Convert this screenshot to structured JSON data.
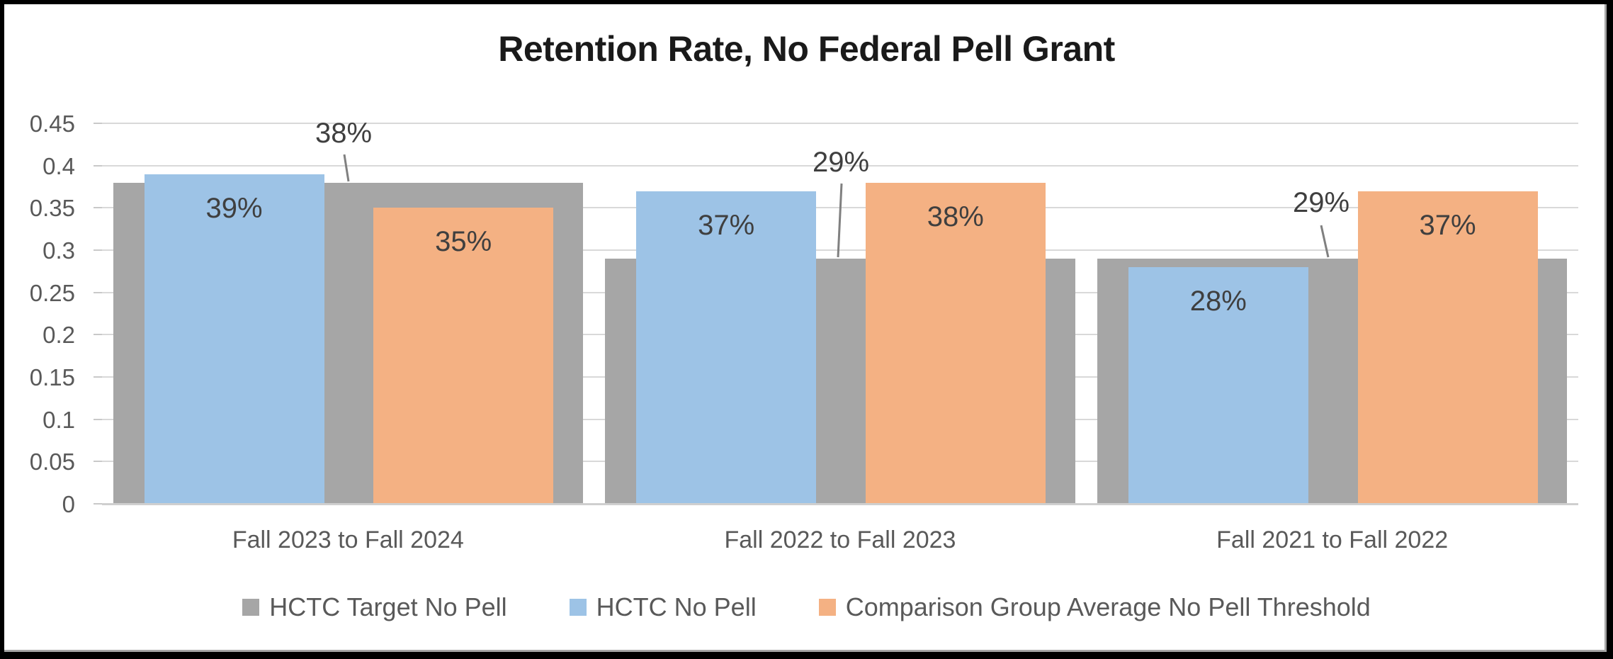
{
  "chart_data": {
    "type": "bar",
    "title": "Retention Rate, No Federal Pell Grant",
    "categories": [
      "Fall 2023 to Fall 2024",
      "Fall 2022 to Fall 2023",
      "Fall 2021 to Fall 2022"
    ],
    "series": [
      {
        "name": "HCTC Target No Pell",
        "color": "#A6A6A6",
        "role": "target-background-span",
        "values": [
          0.38,
          0.29,
          0.29
        ],
        "labels": [
          "38%",
          "29%",
          "29%"
        ],
        "label_style": "callout-above-with-leader-line"
      },
      {
        "name": "HCTC No Pell",
        "color": "#9DC3E6",
        "role": "column",
        "values": [
          0.39,
          0.37,
          0.28
        ],
        "labels": [
          "39%",
          "37%",
          "28%"
        ],
        "label_style": "inside-top"
      },
      {
        "name": "Comparison Group Average No Pell Threshold",
        "color": "#F4B183",
        "role": "column",
        "values": [
          0.35,
          0.38,
          0.37
        ],
        "labels": [
          "35%",
          "38%",
          "37%"
        ],
        "label_style": "inside-top"
      }
    ],
    "y_axis": {
      "min": 0,
      "max": 0.45,
      "step": 0.05,
      "tick_labels": [
        "0",
        "0.05",
        "0.1",
        "0.15",
        "0.2",
        "0.25",
        "0.3",
        "0.35",
        "0.4",
        "0.45"
      ]
    },
    "x_axis": {
      "tick_labels": [
        "Fall 2023 to Fall 2024",
        "Fall 2022 to Fall 2023",
        "Fall 2021 to Fall 2022"
      ]
    },
    "grid": true,
    "legend_position": "bottom",
    "colors": {
      "background": "#FFFFFF",
      "frame": "#000000",
      "grid_line": "#D9D9D9",
      "axis_text": "#595959",
      "data_label_text": "#3F3F3F",
      "leader_line": "#808080",
      "title_text": "#1A1A1A"
    }
  }
}
